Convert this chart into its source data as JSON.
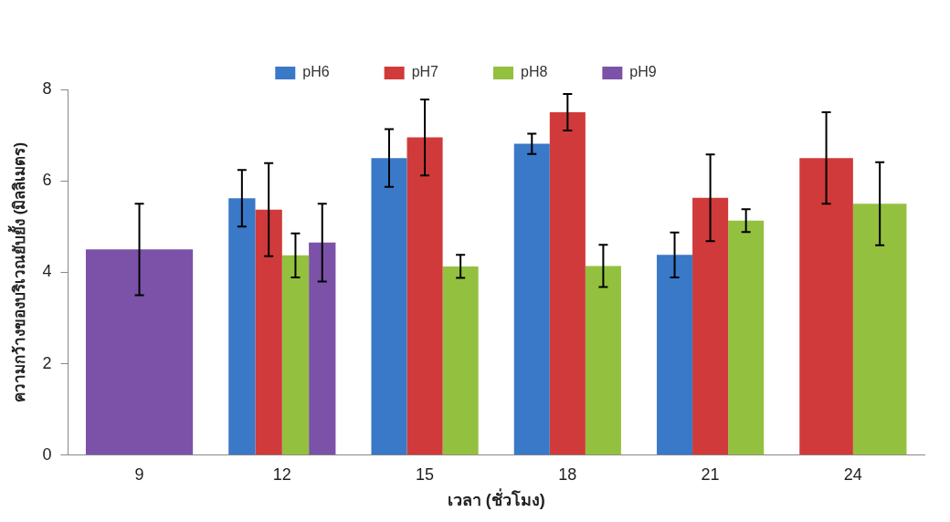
{
  "chart_data": {
    "type": "bar",
    "xlabel": "เวลา (ชั่วโมง)",
    "ylabel": "ความกว้างของบริเวณยับยั้ง (มิลลิเมตร)",
    "categories": [
      "9",
      "12",
      "15",
      "18",
      "21",
      "24"
    ],
    "series": [
      {
        "name": "pH6",
        "color": "#3a78c8",
        "values": [
          null,
          5.62,
          6.5,
          6.81,
          4.38,
          null
        ],
        "errors": [
          null,
          0.62,
          0.63,
          0.22,
          0.49,
          null
        ]
      },
      {
        "name": "pH7",
        "color": "#d03a3a",
        "values": [
          null,
          5.37,
          6.95,
          7.5,
          5.63,
          6.5
        ],
        "errors": [
          null,
          1.02,
          0.83,
          0.4,
          0.95,
          1.0
        ]
      },
      {
        "name": "pH8",
        "color": "#94c040",
        "values": [
          null,
          4.37,
          4.13,
          4.14,
          5.13,
          5.5
        ],
        "errors": [
          null,
          0.48,
          0.25,
          0.46,
          0.25,
          0.91
        ]
      },
      {
        "name": "pH9",
        "color": "#7b52a8",
        "values": [
          4.5,
          4.65,
          null,
          null,
          null,
          null
        ],
        "errors": [
          1.0,
          0.85,
          null,
          null,
          null,
          null
        ]
      }
    ],
    "ylim": [
      0,
      8
    ],
    "yticks": [
      0,
      2,
      4,
      6,
      8
    ],
    "grid": false,
    "legend": "top"
  }
}
